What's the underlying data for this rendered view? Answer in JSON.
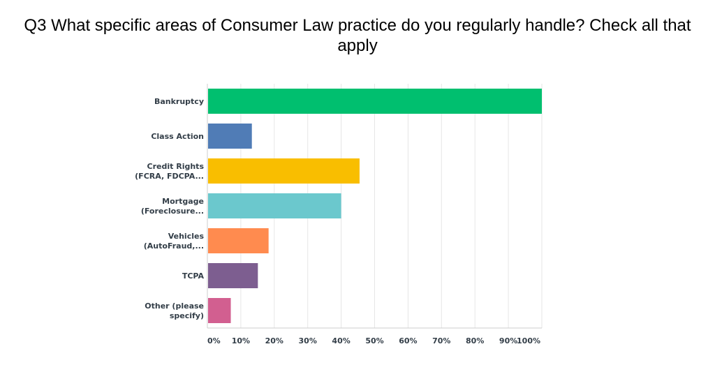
{
  "chart_data": {
    "type": "bar",
    "orientation": "horizontal",
    "title": "Q3 What specific areas of Consumer Law practice do you regularly handle? Check all that apply",
    "categories": [
      [
        "Bankruptcy"
      ],
      [
        "Class Action"
      ],
      [
        "Credit Rights",
        "(FCRA, FDCPA..."
      ],
      [
        "Mortgage",
        "(Foreclosure..."
      ],
      [
        "Vehicles",
        "(AutoFraud,..."
      ],
      [
        "TCPA"
      ],
      [
        "Other (please",
        "specify)"
      ]
    ],
    "values": [
      100,
      13.3,
      45.5,
      40.0,
      18.3,
      15.1,
      7.0
    ],
    "colors": [
      "#00bf6f",
      "#507cb6",
      "#f9be00",
      "#6bc8cd",
      "#ff8b4f",
      "#7d5e90",
      "#d25f90"
    ],
    "xlim": [
      0,
      100
    ],
    "ticks": [
      "0%",
      "10%",
      "20%",
      "30%",
      "40%",
      "50%",
      "60%",
      "70%",
      "80%",
      "90%",
      "100%"
    ],
    "grid": true,
    "xlabel": "",
    "ylabel": ""
  }
}
